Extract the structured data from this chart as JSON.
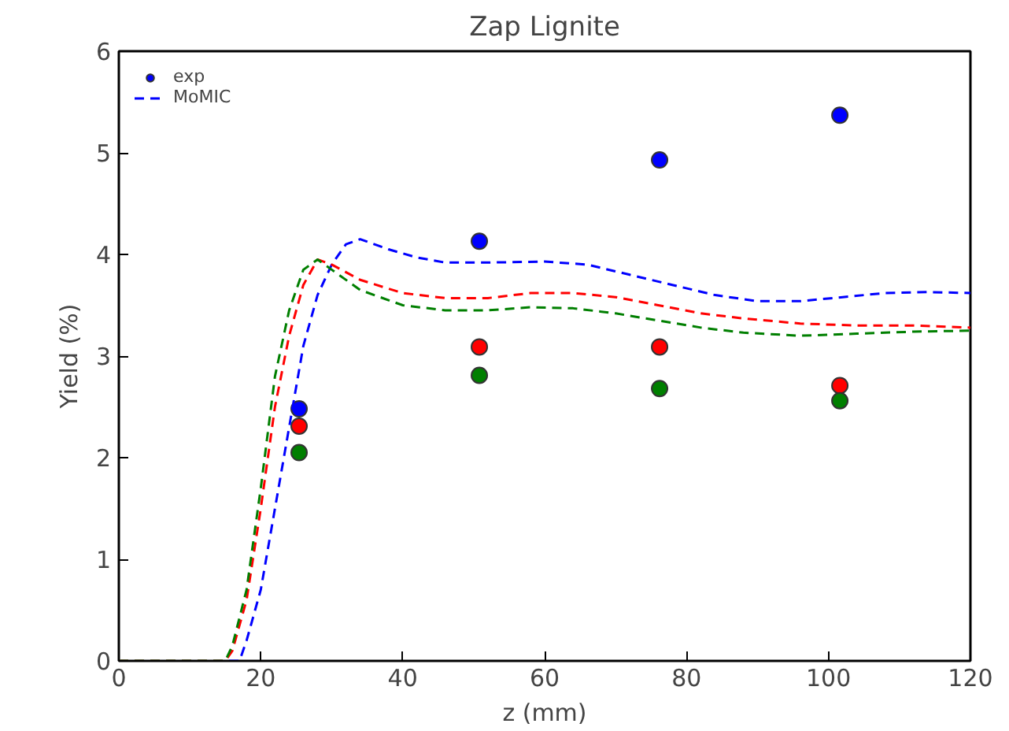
{
  "chart_data": {
    "type": "scatter",
    "title": "Zap Lignite",
    "xlabel": "z (mm)",
    "ylabel": "Yield (%)",
    "xlim": [
      0,
      120
    ],
    "ylim": [
      0,
      6
    ],
    "xticks": [
      0,
      20,
      40,
      60,
      80,
      100,
      120
    ],
    "yticks": [
      0,
      1,
      2,
      3,
      4,
      5,
      6
    ],
    "grid": false,
    "legend": "top left",
    "series": [
      {
        "name": "exp",
        "marker": "circle",
        "color": "#0000ff",
        "x": [
          25.4,
          50.8,
          76.2,
          101.6
        ],
        "values": [
          2.48,
          4.13,
          4.93,
          5.37
        ]
      },
      {
        "marker": "circle",
        "color": "#ff0000",
        "x": [
          25.4,
          50.8,
          76.2,
          101.6
        ],
        "values": [
          2.31,
          3.09,
          3.09,
          2.71
        ]
      },
      {
        "marker": "circle",
        "color": "#007f00",
        "x": [
          25.4,
          50.8,
          76.2,
          101.6
        ],
        "values": [
          2.05,
          2.81,
          2.68,
          2.56
        ]
      },
      {
        "name": "MoMIC",
        "type": "line",
        "line_style": "dashed",
        "color": "#0000ff",
        "x": [
          0,
          17,
          18,
          20,
          22,
          24,
          26,
          28,
          30,
          32,
          34,
          38,
          42,
          46,
          52,
          60,
          66,
          72,
          78,
          84,
          90,
          96,
          102,
          108,
          114,
          120
        ],
        "values": [
          0,
          0,
          0.2,
          0.7,
          1.5,
          2.3,
          3.1,
          3.6,
          3.9,
          4.1,
          4.15,
          4.05,
          3.97,
          3.92,
          3.92,
          3.93,
          3.9,
          3.8,
          3.7,
          3.6,
          3.54,
          3.54,
          3.58,
          3.62,
          3.63,
          3.62
        ]
      },
      {
        "type": "line",
        "line_style": "dashed",
        "color": "#ff0000",
        "x": [
          0,
          15,
          16,
          18,
          20,
          22,
          24,
          26,
          28,
          30,
          34,
          40,
          46,
          52,
          58,
          64,
          70,
          76,
          82,
          88,
          96,
          104,
          112,
          120
        ],
        "values": [
          0,
          0,
          0.1,
          0.6,
          1.5,
          2.5,
          3.2,
          3.7,
          3.95,
          3.9,
          3.75,
          3.62,
          3.57,
          3.57,
          3.62,
          3.62,
          3.58,
          3.5,
          3.42,
          3.37,
          3.32,
          3.3,
          3.3,
          3.28
        ]
      },
      {
        "type": "line",
        "line_style": "dashed",
        "color": "#007f00",
        "x": [
          0,
          15,
          16,
          18,
          20,
          22,
          24,
          26,
          28,
          30,
          34,
          40,
          46,
          52,
          58,
          64,
          70,
          76,
          82,
          88,
          96,
          104,
          112,
          120
        ],
        "values": [
          0,
          0,
          0.15,
          0.7,
          1.7,
          2.8,
          3.45,
          3.85,
          3.95,
          3.85,
          3.65,
          3.5,
          3.45,
          3.45,
          3.48,
          3.47,
          3.42,
          3.35,
          3.28,
          3.23,
          3.2,
          3.22,
          3.24,
          3.25
        ]
      }
    ]
  }
}
